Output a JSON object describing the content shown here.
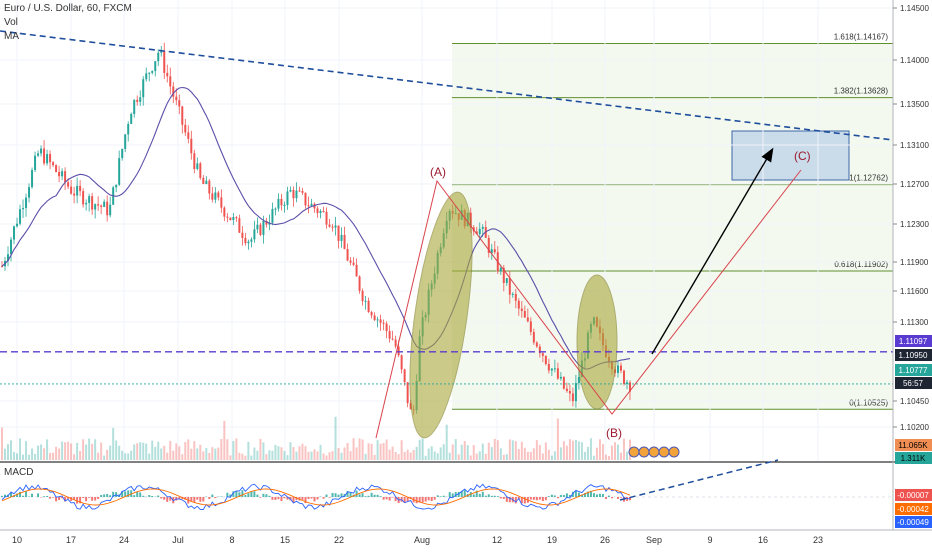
{
  "header": {
    "symbol_line": "Euro / U.S. Dollar, 60, FXCM",
    "vol_label": "Vol",
    "ma_label": "MA"
  },
  "macd_label": "MACD",
  "colors": {
    "bull": "#26a69a",
    "bear": "#ef5350",
    "ma": "#5b4fa8",
    "trend": "#1f4e9c",
    "wave_red": "#d9434c",
    "arrow": "#000000",
    "fib_line": "#5f8f2f",
    "fib_fill": "#eaf4e2",
    "target_fill": "#c3d6ea",
    "ellipse": "#a9a83a",
    "support": "#5a3bd1"
  },
  "chart_data": {
    "type": "candlestick",
    "instrument": "Euro / U.S. Dollar, 60, FXCM",
    "x_ticks": [
      "10",
      "17",
      "24",
      "Jul",
      "8",
      "15",
      "22",
      "Aug",
      "12",
      "19",
      "26",
      "Sep",
      "9",
      "16",
      "23"
    ],
    "y_ticks": [
      "1.14500",
      "1.14000",
      "1.13500",
      "1.13100",
      "1.12700",
      "1.12300",
      "1.11900",
      "1.11600",
      "1.11300",
      "1.10450",
      "1.10200"
    ],
    "ylim": [
      1.1,
      1.146
    ],
    "fib_levels": [
      {
        "label": "1.618(1.14167)",
        "value": 1.14167
      },
      {
        "label": "1.382(1.13628)",
        "value": 1.13628
      },
      {
        "label": "1(1.12762)",
        "value": 1.12762
      },
      {
        "label": "0.618(1.11902)",
        "value": 1.11902
      },
      {
        "label": "0(1.10525)",
        "value": 1.10525
      }
    ],
    "price_badges": [
      {
        "label": "1.11097",
        "value": 1.11097,
        "kind": "support"
      },
      {
        "label": "1.10950",
        "value": 1.1095,
        "kind": "dark"
      },
      {
        "label": "1.10777",
        "value": 1.10777,
        "kind": "last"
      },
      {
        "label": "56:57",
        "value": 1.1064,
        "kind": "countdown"
      }
    ],
    "volume_badges": [
      {
        "label": "11.065K"
      },
      {
        "label": "1.311K"
      }
    ],
    "wave_labels": [
      "(A)",
      "(B)",
      "(C)"
    ],
    "wave_points": {
      "start": 1.1025,
      "A": 1.1276,
      "B": 1.1038,
      "C": 1.1283
    },
    "macd_badges": [
      "-0.00007",
      "-0.00042",
      "-0.00049"
    ],
    "price_anchor_x": [
      0,
      0.045,
      0.085,
      0.13,
      0.155,
      0.19,
      0.24,
      0.3,
      0.35,
      0.4,
      0.44,
      0.475,
      0.497,
      0.505,
      0.515,
      0.54,
      0.58,
      0.62,
      0.66,
      0.69,
      0.715,
      0.725,
      0.745,
      0.76
    ],
    "price_anchor_y": [
      1.1195,
      1.131,
      1.127,
      1.125,
      1.135,
      1.141,
      1.128,
      1.122,
      1.127,
      1.124,
      1.116,
      1.112,
      1.104,
      1.112,
      1.116,
      1.1255,
      1.123,
      1.116,
      1.11,
      1.106,
      1.114,
      1.112,
      1.109,
      1.1078
    ]
  }
}
